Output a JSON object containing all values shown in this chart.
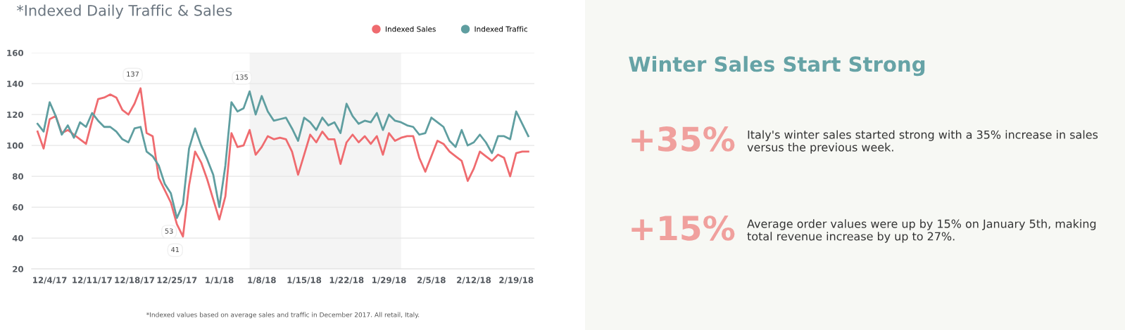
{
  "chart_data": [
    {
      "type": "line",
      "title": "*Indexed Daily Traffic & Sales",
      "x": [
        "2017-12-02",
        "2017-12-03",
        "2017-12-04",
        "2017-12-05",
        "2017-12-06",
        "2017-12-07",
        "2017-12-08",
        "2017-12-09",
        "2017-12-10",
        "2017-12-11",
        "2017-12-12",
        "2017-12-13",
        "2017-12-14",
        "2017-12-15",
        "2017-12-16",
        "2017-12-17",
        "2017-12-18",
        "2017-12-19",
        "2017-12-20",
        "2017-12-21",
        "2017-12-22",
        "2017-12-23",
        "2017-12-24",
        "2017-12-25",
        "2017-12-26",
        "2017-12-27",
        "2017-12-28",
        "2017-12-29",
        "2017-12-30",
        "2017-12-31",
        "2018-01-01",
        "2018-01-02",
        "2018-01-03",
        "2018-01-04",
        "2018-01-05",
        "2018-01-06",
        "2018-01-07",
        "2018-01-08",
        "2018-01-09",
        "2018-01-10",
        "2018-01-11",
        "2018-01-12",
        "2018-01-13",
        "2018-01-14",
        "2018-01-15",
        "2018-01-16",
        "2018-01-17",
        "2018-01-18",
        "2018-01-19",
        "2018-01-20",
        "2018-01-21",
        "2018-01-22",
        "2018-01-23",
        "2018-01-24",
        "2018-01-25",
        "2018-01-26",
        "2018-01-27",
        "2018-01-28",
        "2018-01-29",
        "2018-01-30",
        "2018-01-31",
        "2018-02-01",
        "2018-02-02",
        "2018-02-03",
        "2018-02-04",
        "2018-02-05",
        "2018-02-06",
        "2018-02-07",
        "2018-02-08",
        "2018-02-09",
        "2018-02-10",
        "2018-02-11",
        "2018-02-12",
        "2018-02-13",
        "2018-02-14",
        "2018-02-15",
        "2018-02-16",
        "2018-02-17",
        "2018-02-18",
        "2018-02-19",
        "2018-02-20",
        "2018-02-21"
      ],
      "series": [
        {
          "name": "Indexed Sales",
          "color": "#ef6b6f",
          "values": [
            109,
            98,
            117,
            119,
            108,
            110,
            107,
            104,
            101,
            116,
            130,
            131,
            133,
            131,
            123,
            120,
            127,
            137,
            108,
            106,
            79,
            71,
            63,
            49,
            41,
            74,
            96,
            89,
            78,
            65,
            52,
            67,
            108,
            99,
            100,
            110,
            94,
            99,
            106,
            104,
            105,
            104,
            96,
            81,
            94,
            107,
            102,
            109,
            104,
            104,
            88,
            102,
            107,
            102,
            106,
            101,
            106,
            94,
            108,
            103,
            105,
            106,
            106,
            92,
            83,
            93,
            103,
            101,
            96,
            93,
            90,
            77,
            85,
            96,
            93,
            90,
            94,
            92,
            80,
            95,
            96,
            96
          ]
        },
        {
          "name": "Indexed Traffic",
          "color": "#5f9ea0",
          "values": [
            114,
            109,
            128,
            119,
            107,
            113,
            105,
            115,
            112,
            121,
            116,
            112,
            112,
            109,
            104,
            102,
            111,
            112,
            96,
            93,
            87,
            75,
            69,
            53,
            62,
            98,
            111,
            100,
            91,
            81,
            60,
            87,
            128,
            122,
            124,
            135,
            120,
            132,
            122,
            116,
            117,
            118,
            111,
            103,
            118,
            115,
            110,
            118,
            113,
            115,
            108,
            127,
            119,
            114,
            116,
            115,
            121,
            110,
            120,
            116,
            115,
            113,
            112,
            107,
            108,
            118,
            115,
            112,
            103,
            99,
            110,
            100,
            102,
            107,
            102,
            95,
            106,
            106,
            104,
            122,
            114,
            106
          ]
        }
      ],
      "xlim": [
        "2017-12-01",
        "2018-02-22"
      ],
      "xticks": [
        {
          "value": "2017-12-04",
          "label": "12/4/17"
        },
        {
          "value": "2017-12-11",
          "label": "12/11/17"
        },
        {
          "value": "2017-12-18",
          "label": "12/18/17"
        },
        {
          "value": "2017-12-25",
          "label": "12/25/17"
        },
        {
          "value": "2018-01-01",
          "label": "1/1/18"
        },
        {
          "value": "2018-01-08",
          "label": "1/8/18"
        },
        {
          "value": "2018-01-15",
          "label": "1/15/18"
        },
        {
          "value": "2018-01-22",
          "label": "1/22/18"
        },
        {
          "value": "2018-01-29",
          "label": "1/29/18"
        },
        {
          "value": "2018-02-05",
          "label": "2/5/18"
        },
        {
          "value": "2018-02-12",
          "label": "2/12/18"
        },
        {
          "value": "2018-02-19",
          "label": "2/19/18"
        }
      ],
      "ylim": [
        20,
        160
      ],
      "yticks": [
        20,
        40,
        60,
        80,
        100,
        120,
        140,
        160
      ],
      "grid": "y",
      "legend": "top right",
      "marker": "none",
      "line_style": "solid",
      "bands": [
        {
          "axis": "x",
          "from": "2018-01-06",
          "to": "2018-01-31",
          "color": "#f4f4f4"
        }
      ],
      "annotations": [
        {
          "text": "137",
          "x": "2017-12-19",
          "y": 137
        },
        {
          "text": "53",
          "x": "2017-12-25",
          "y": 53
        },
        {
          "text": "41",
          "x": "2017-12-26",
          "y": 41
        },
        {
          "text": "135",
          "x": "2018-01-06",
          "y": 135
        },
        "*Indexed values based on average sales and traffic in December 2017. All retail, Italy."
      ]
    },
    {
      "type": "other",
      "title": "Winter Sales Start Strong",
      "annotations": [
        "+35%",
        "Italy's winter sales started strong with a 35% increase in sales versus the previous week.",
        "+15%",
        "Average order values were up by 15% on January 5th, making total revenue increase by up to 27%."
      ]
    }
  ]
}
